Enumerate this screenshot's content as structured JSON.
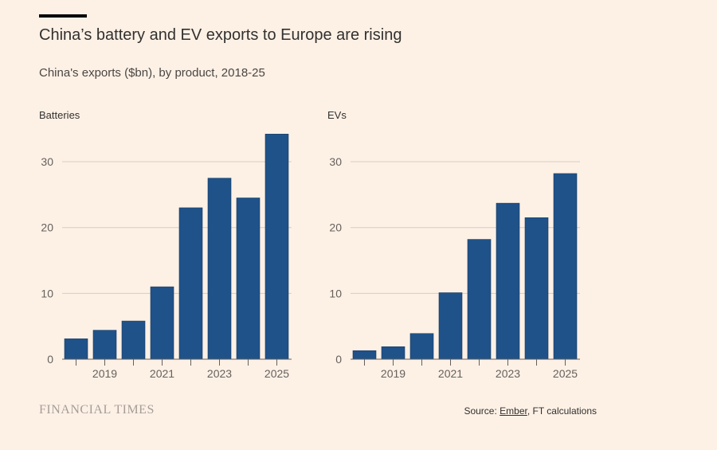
{
  "header": {
    "title": "China’s battery and EV exports to Europe are rising",
    "subtitle": "China's exports ($bn), by product, 2018-25"
  },
  "footer": {
    "brand": "FINANCIAL TIMES",
    "source_prefix": "Source: ",
    "source_link": "Ember",
    "source_suffix": ", FT calculations"
  },
  "colors": {
    "background": "#fdf1e6",
    "bar": "#1f5289",
    "gridline": "#d9cbc0",
    "text": "#33302e"
  },
  "chart_data": [
    {
      "type": "bar",
      "title": "Batteries",
      "x": [
        2018,
        2019,
        2020,
        2021,
        2022,
        2023,
        2024,
        2025
      ],
      "tick_labels": [
        "2019",
        "2021",
        "2023",
        "2025"
      ],
      "values": [
        3.1,
        4.4,
        5.8,
        11.0,
        23.0,
        27.5,
        24.5,
        34.2
      ],
      "xlabel": "",
      "ylabel": "",
      "yticks": [
        0,
        10,
        20,
        30
      ],
      "ylim": [
        0,
        34
      ],
      "grid": true
    },
    {
      "type": "bar",
      "title": "EVs",
      "x": [
        2018,
        2019,
        2020,
        2021,
        2022,
        2023,
        2024,
        2025
      ],
      "tick_labels": [
        "2019",
        "2021",
        "2023",
        "2025"
      ],
      "values": [
        1.3,
        1.9,
        3.9,
        10.1,
        18.2,
        23.7,
        21.5,
        28.2
      ],
      "xlabel": "",
      "ylabel": "",
      "yticks": [
        0,
        10,
        20,
        30
      ],
      "ylim": [
        0,
        34
      ],
      "grid": true
    }
  ]
}
